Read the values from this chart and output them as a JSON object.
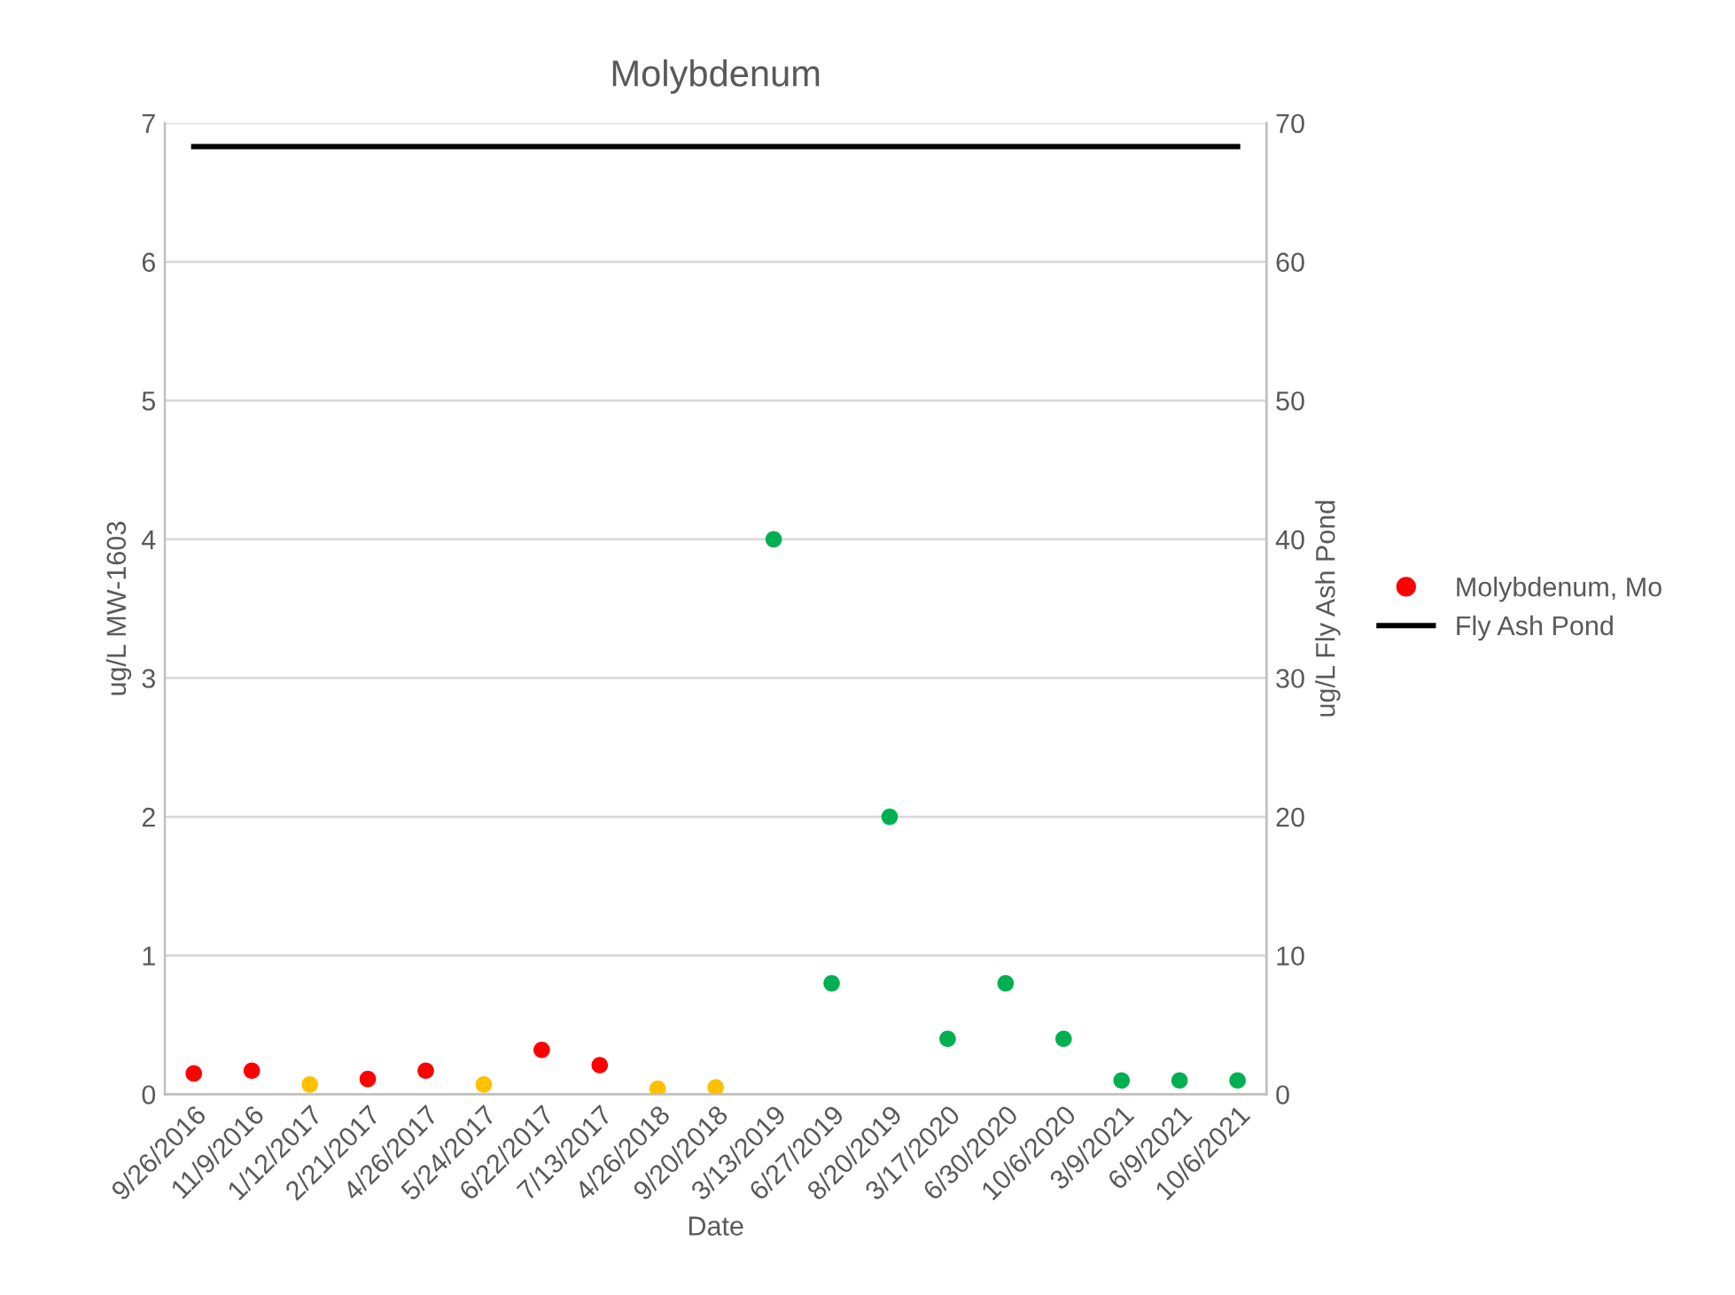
{
  "chart_data": {
    "type": "scatter",
    "title": "Molybdenum",
    "xlabel": "Date",
    "ylabel": "ug/L MW-1603",
    "y2label": "ug/L Fly Ash Pond",
    "categories": [
      "9/26/2016",
      "11/9/2016",
      "1/12/2017",
      "2/21/2017",
      "4/26/2017",
      "5/24/2017",
      "6/22/2017",
      "7/13/2017",
      "4/26/2018",
      "9/20/2018",
      "3/13/2019",
      "6/27/2019",
      "8/20/2019",
      "3/17/2020",
      "6/30/2020",
      "10/6/2020",
      "3/9/2021",
      "6/9/2021",
      "10/6/2021"
    ],
    "series": [
      {
        "name": "Molybdenum, Mo",
        "color": "#ff0000",
        "colors": [
          "#ff0000",
          "#ff0000",
          "#ffc000",
          "#ff0000",
          "#ff0000",
          "#ffc000",
          "#ff0000",
          "#ff0000",
          "#ffc000",
          "#ffc000",
          "#00b050",
          "#00b050",
          "#00b050",
          "#00b050",
          "#00b050",
          "#00b050",
          "#00b050",
          "#00b050",
          "#00b050"
        ],
        "marker": "circle",
        "values": [
          0.15,
          0.17,
          0.07,
          0.11,
          0.17,
          0.07,
          0.32,
          0.21,
          0.04,
          0.05,
          4.0,
          0.8,
          2.0,
          0.4,
          0.8,
          0.4,
          0.1,
          0.1,
          0.1
        ]
      },
      {
        "name": "Fly Ash Pond",
        "type": "line",
        "axis": "y2",
        "color": "#000000",
        "marker": "none",
        "line_style": "solid",
        "values": [
          68.3,
          68.3,
          68.3,
          68.3,
          68.3,
          68.3,
          68.3,
          68.3,
          68.3,
          68.3,
          68.3,
          68.3,
          68.3,
          68.3,
          68.3,
          68.3,
          68.3,
          68.3,
          68.3
        ]
      }
    ],
    "ylim": [
      0,
      7
    ],
    "yticks": [
      0,
      1,
      2,
      3,
      4,
      5,
      6,
      7
    ],
    "y2lim": [
      0,
      70
    ],
    "y2ticks": [
      0,
      10,
      20,
      30,
      40,
      50,
      60,
      70
    ],
    "grid": "y",
    "legend": "right"
  }
}
